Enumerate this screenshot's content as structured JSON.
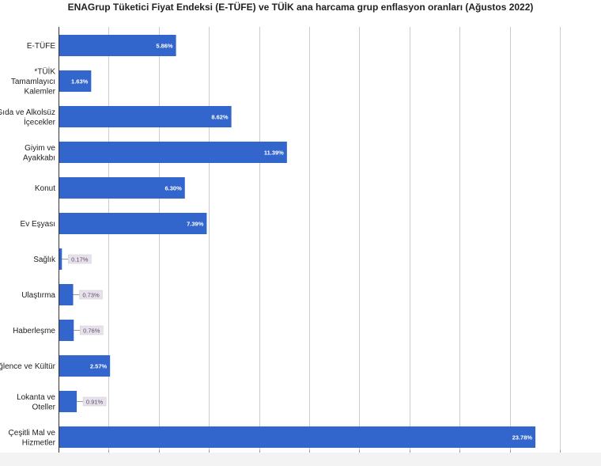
{
  "chart_data": {
    "type": "bar",
    "orientation": "horizontal",
    "title": "ENAGrup Tüketici Fiyat Endeksi (E-TÜFE) ve TÜİK ana harcama grup enflasyon oranları (Ağustos 2022)",
    "categories": [
      [
        "E-TÜFE"
      ],
      [
        "*TÜİK",
        "Tamamlayıcı",
        "Kalemler"
      ],
      [
        "Gıda ve Alkolsüz",
        "İçecekler"
      ],
      [
        "Giyim ve",
        "Ayakkabı"
      ],
      [
        "Konut"
      ],
      [
        "Ev Eşyası"
      ],
      [
        "Sağlık"
      ],
      [
        "Ulaştırma"
      ],
      [
        "Haberleşme"
      ],
      [
        "Eğlence ve Kültür"
      ],
      [
        "Lokanta ve",
        "Oteller"
      ],
      [
        "Çeşitli Mal ve",
        "Hizmetler"
      ]
    ],
    "values": [
      5.86,
      1.63,
      8.62,
      11.39,
      6.3,
      7.39,
      0.17,
      0.73,
      0.76,
      2.57,
      0.91,
      23.78
    ],
    "data_labels": [
      "5.86%",
      "1.63%",
      "8.62%",
      "11.39%",
      "6.30%",
      "7.39%",
      "0.17%",
      "0.73%",
      "0.76%",
      "2.57%",
      "0.91%",
      "23.78%"
    ],
    "xlim": [
      0,
      25
    ],
    "gridlines_at": [
      0,
      2.5,
      5,
      7.5,
      10,
      12.5,
      15,
      17.5,
      20,
      22.5,
      25
    ],
    "grid": true,
    "legend": "none",
    "bar_color": "#3366cc",
    "inside_label_color": "#ffffff",
    "outside_label_box_color": "#e8e0ef",
    "grid_color": "#cccccc"
  }
}
